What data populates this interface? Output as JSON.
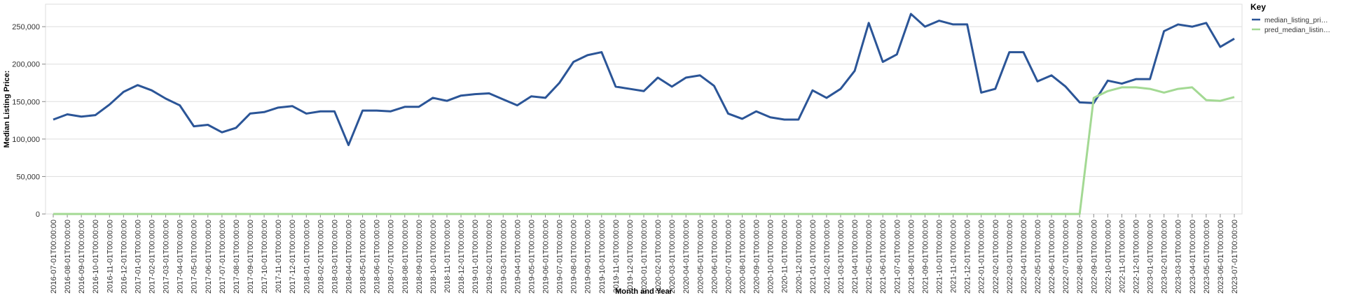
{
  "chart_data": {
    "type": "line",
    "x_label": "Month and Year",
    "y_label": "Median Listing Price:",
    "legend_title": "Key",
    "legend_position": "top-right",
    "categories": [
      "2016-07-01T00:00:00",
      "2016-08-01T00:00:00",
      "2016-09-01T00:00:00",
      "2016-10-01T00:00:00",
      "2016-11-01T00:00:00",
      "2016-12-01T00:00:00",
      "2017-01-01T00:00:00",
      "2017-02-01T00:00:00",
      "2017-03-01T00:00:00",
      "2017-04-01T00:00:00",
      "2017-05-01T00:00:00",
      "2017-06-01T00:00:00",
      "2017-07-01T00:00:00",
      "2017-08-01T00:00:00",
      "2017-09-01T00:00:00",
      "2017-10-01T00:00:00",
      "2017-11-01T00:00:00",
      "2017-12-01T00:00:00",
      "2018-01-01T00:00:00",
      "2018-02-01T00:00:00",
      "2018-03-01T00:00:00",
      "2018-04-01T00:00:00",
      "2018-05-01T00:00:00",
      "2018-06-01T00:00:00",
      "2018-07-01T00:00:00",
      "2018-08-01T00:00:00",
      "2018-09-01T00:00:00",
      "2018-10-01T00:00:00",
      "2018-11-01T00:00:00",
      "2018-12-01T00:00:00",
      "2019-01-01T00:00:00",
      "2019-02-01T00:00:00",
      "2019-03-01T00:00:00",
      "2019-04-01T00:00:00",
      "2019-05-01T00:00:00",
      "2019-06-01T00:00:00",
      "2019-07-01T00:00:00",
      "2019-08-01T00:00:00",
      "2019-09-01T00:00:00",
      "2019-10-01T00:00:00",
      "2019-11-01T00:00:00",
      "2019-12-01T00:00:00",
      "2020-01-01T00:00:00",
      "2020-02-01T00:00:00",
      "2020-03-01T00:00:00",
      "2020-04-01T00:00:00",
      "2020-05-01T00:00:00",
      "2020-06-01T00:00:00",
      "2020-07-01T00:00:00",
      "2020-08-01T00:00:00",
      "2020-09-01T00:00:00",
      "2020-10-01T00:00:00",
      "2020-11-01T00:00:00",
      "2020-12-01T00:00:00",
      "2021-01-01T00:00:00",
      "2021-02-01T00:00:00",
      "2021-03-01T00:00:00",
      "2021-04-01T00:00:00",
      "2021-05-01T00:00:00",
      "2021-06-01T00:00:00",
      "2021-07-01T00:00:00",
      "2021-08-01T00:00:00",
      "2021-09-01T00:00:00",
      "2021-10-01T00:00:00",
      "2021-11-01T00:00:00",
      "2021-12-01T00:00:00",
      "2022-01-01T00:00:00",
      "2022-02-01T00:00:00",
      "2022-03-01T00:00:00",
      "2022-04-01T00:00:00",
      "2022-05-01T00:00:00",
      "2022-06-01T00:00:00",
      "2022-07-01T00:00:00",
      "2022-08-01T00:00:00",
      "2022-09-01T00:00:00",
      "2022-10-01T00:00:00",
      "2022-11-01T00:00:00",
      "2022-12-01T00:00:00",
      "2023-01-01T00:00:00",
      "2023-02-01T00:00:00",
      "2023-03-01T00:00:00",
      "2023-04-01T00:00:00",
      "2023-05-01T00:00:00",
      "2023-06-01T00:00:00",
      "2023-07-01T00:00:00"
    ],
    "series": [
      {
        "name": "median_listing_pri…",
        "color": "#2b5597",
        "values": [
          126000,
          133000,
          130000,
          132000,
          146000,
          163000,
          172000,
          165000,
          154000,
          145000,
          117000,
          119000,
          109000,
          115000,
          134000,
          136000,
          142000,
          144000,
          134000,
          137000,
          137000,
          92000,
          138000,
          138000,
          137000,
          143000,
          143000,
          155000,
          151000,
          158000,
          160000,
          161000,
          153000,
          145000,
          157000,
          155000,
          175000,
          203000,
          212000,
          216000,
          170000,
          167000,
          164000,
          182000,
          170000,
          182000,
          185000,
          171000,
          134000,
          127000,
          137000,
          129000,
          126000,
          126000,
          165000,
          155000,
          167000,
          191000,
          255000,
          203000,
          213000,
          267000,
          250000,
          258000,
          253000,
          253000,
          162000,
          167000,
          216000,
          216000,
          177000,
          185000,
          170000,
          149000,
          148000,
          178000,
          174000,
          180000,
          180000,
          244000,
          253000,
          250000,
          255000,
          223000,
          234000
        ]
      },
      {
        "name": "pred_median_listin…",
        "color": "#a3d993",
        "values": [
          0,
          0,
          0,
          0,
          0,
          0,
          0,
          0,
          0,
          0,
          0,
          0,
          0,
          0,
          0,
          0,
          0,
          0,
          0,
          0,
          0,
          0,
          0,
          0,
          0,
          0,
          0,
          0,
          0,
          0,
          0,
          0,
          0,
          0,
          0,
          0,
          0,
          0,
          0,
          0,
          0,
          0,
          0,
          0,
          0,
          0,
          0,
          0,
          0,
          0,
          0,
          0,
          0,
          0,
          0,
          0,
          0,
          0,
          0,
          0,
          0,
          0,
          0,
          0,
          0,
          0,
          0,
          0,
          0,
          0,
          0,
          0,
          0,
          0,
          155000,
          164000,
          169000,
          169000,
          167000,
          162000,
          167000,
          169000,
          152000,
          151000,
          156000
        ]
      }
    ],
    "ylim": [
      0,
      280000
    ],
    "yticks": [
      0,
      {
        "value": 50000,
        "label": "50,000"
      },
      {
        "value": 100000,
        "label": "100,000"
      },
      {
        "value": 150000,
        "label": "150,000"
      },
      {
        "value": 200000,
        "label": "200,000"
      },
      {
        "value": 250000,
        "label": "250,000"
      }
    ],
    "grid": true
  }
}
